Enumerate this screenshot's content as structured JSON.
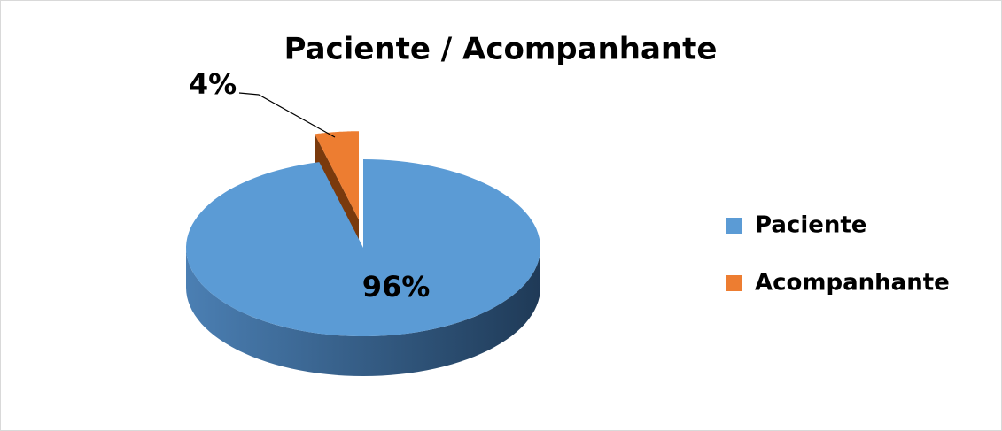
{
  "chart_data": {
    "type": "pie",
    "title": "Paciente / Acompanhante",
    "categories": [
      "Paciente",
      "Acompanhante"
    ],
    "values": [
      96,
      4
    ],
    "value_labels": [
      "96%",
      "4%"
    ],
    "colors": [
      "#5b9bd5",
      "#ed7d31"
    ],
    "legend": "right"
  }
}
